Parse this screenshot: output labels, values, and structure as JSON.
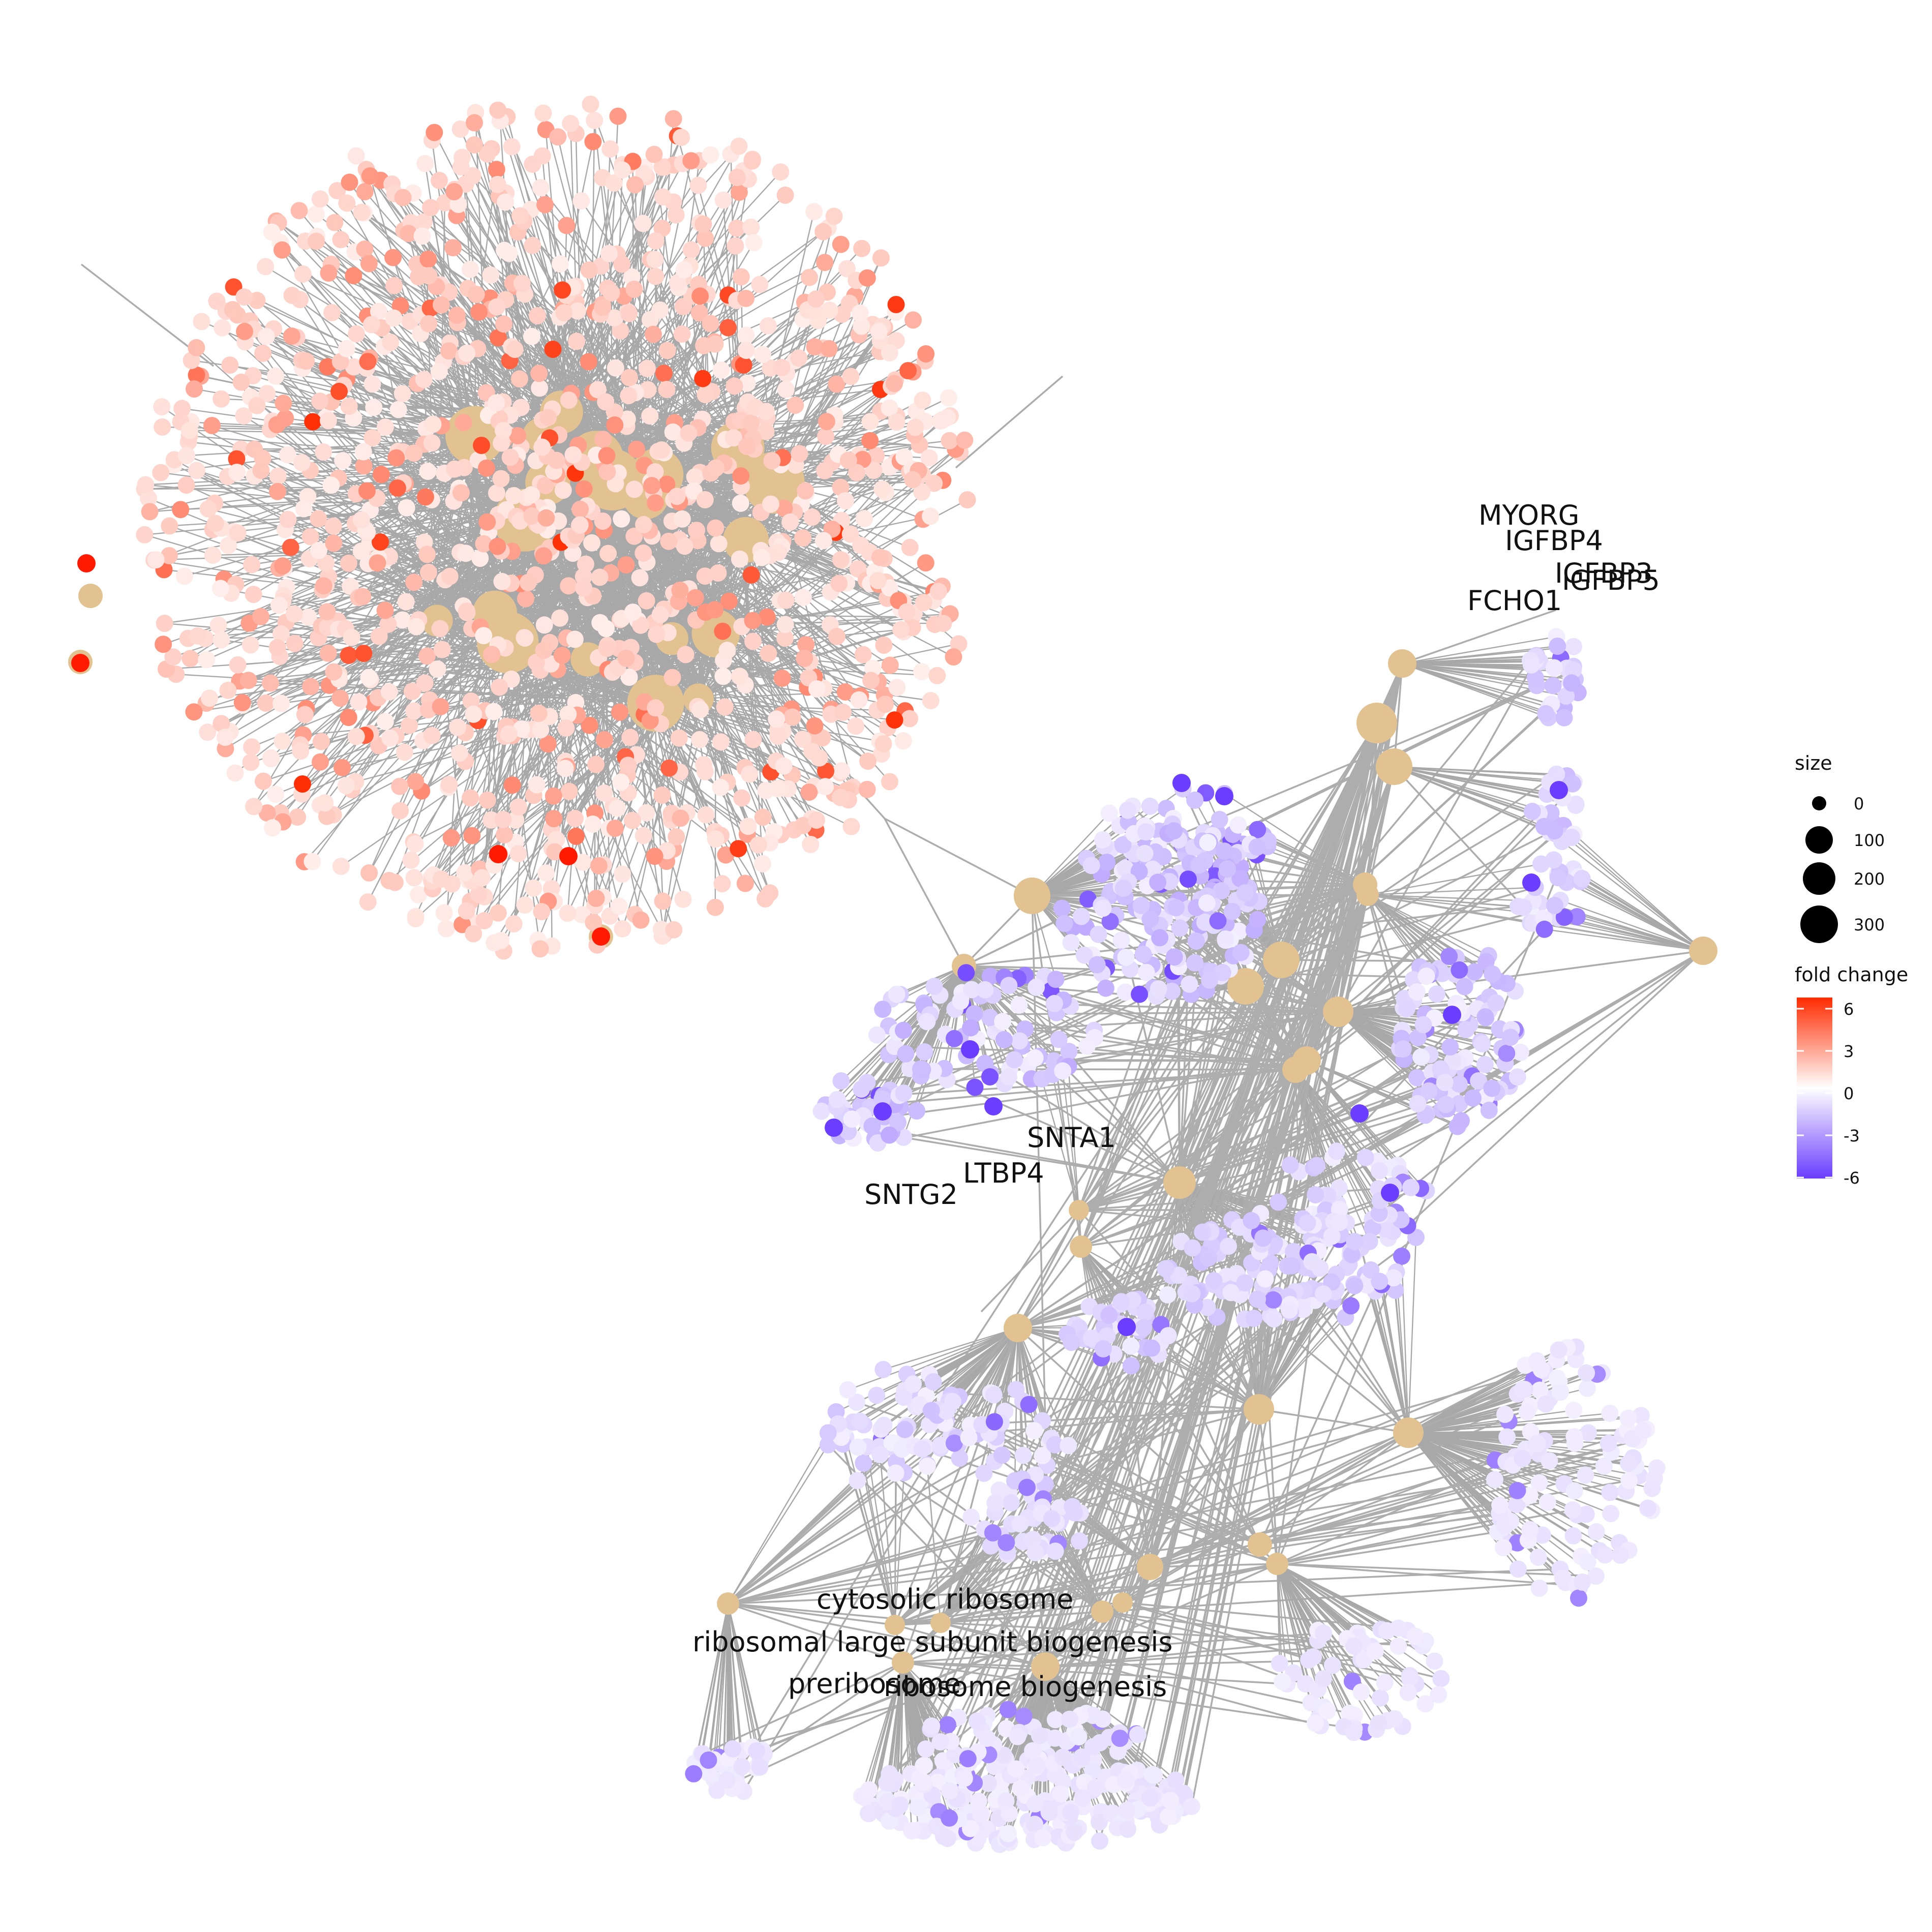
{
  "labels": {
    "myorg": "MYORG",
    "igfbp4": "IGFBP4",
    "igfbp3": "IGFBP3",
    "igfbp5": "IGFBP5",
    "fcho1": "FCHO1",
    "snta1": "SNTA1",
    "ltbp4": "LTBP4",
    "sntg2": "SNTG2",
    "cytosolic_ribosome": "cytosolic ribosome",
    "ribosomal_large_subunit_biogenesis": "ribosomal large subunit biogenesis",
    "ribosome_biogenesis": "ribosome biogenesis",
    "preribosome": "preribosome"
  },
  "legend": {
    "size_title": "size",
    "size_items": [
      "0",
      "100",
      "200",
      "300"
    ],
    "color_title": "fold change",
    "color_ticks": [
      "6",
      "3",
      "0",
      "-3",
      "-6"
    ]
  },
  "colors": {
    "category_node": "#e2c291",
    "edge": "#adadad",
    "fold_change_high": "#ff2b00",
    "fold_change_mid": "#ffffff",
    "fold_change_low": "#6a3dff"
  }
}
